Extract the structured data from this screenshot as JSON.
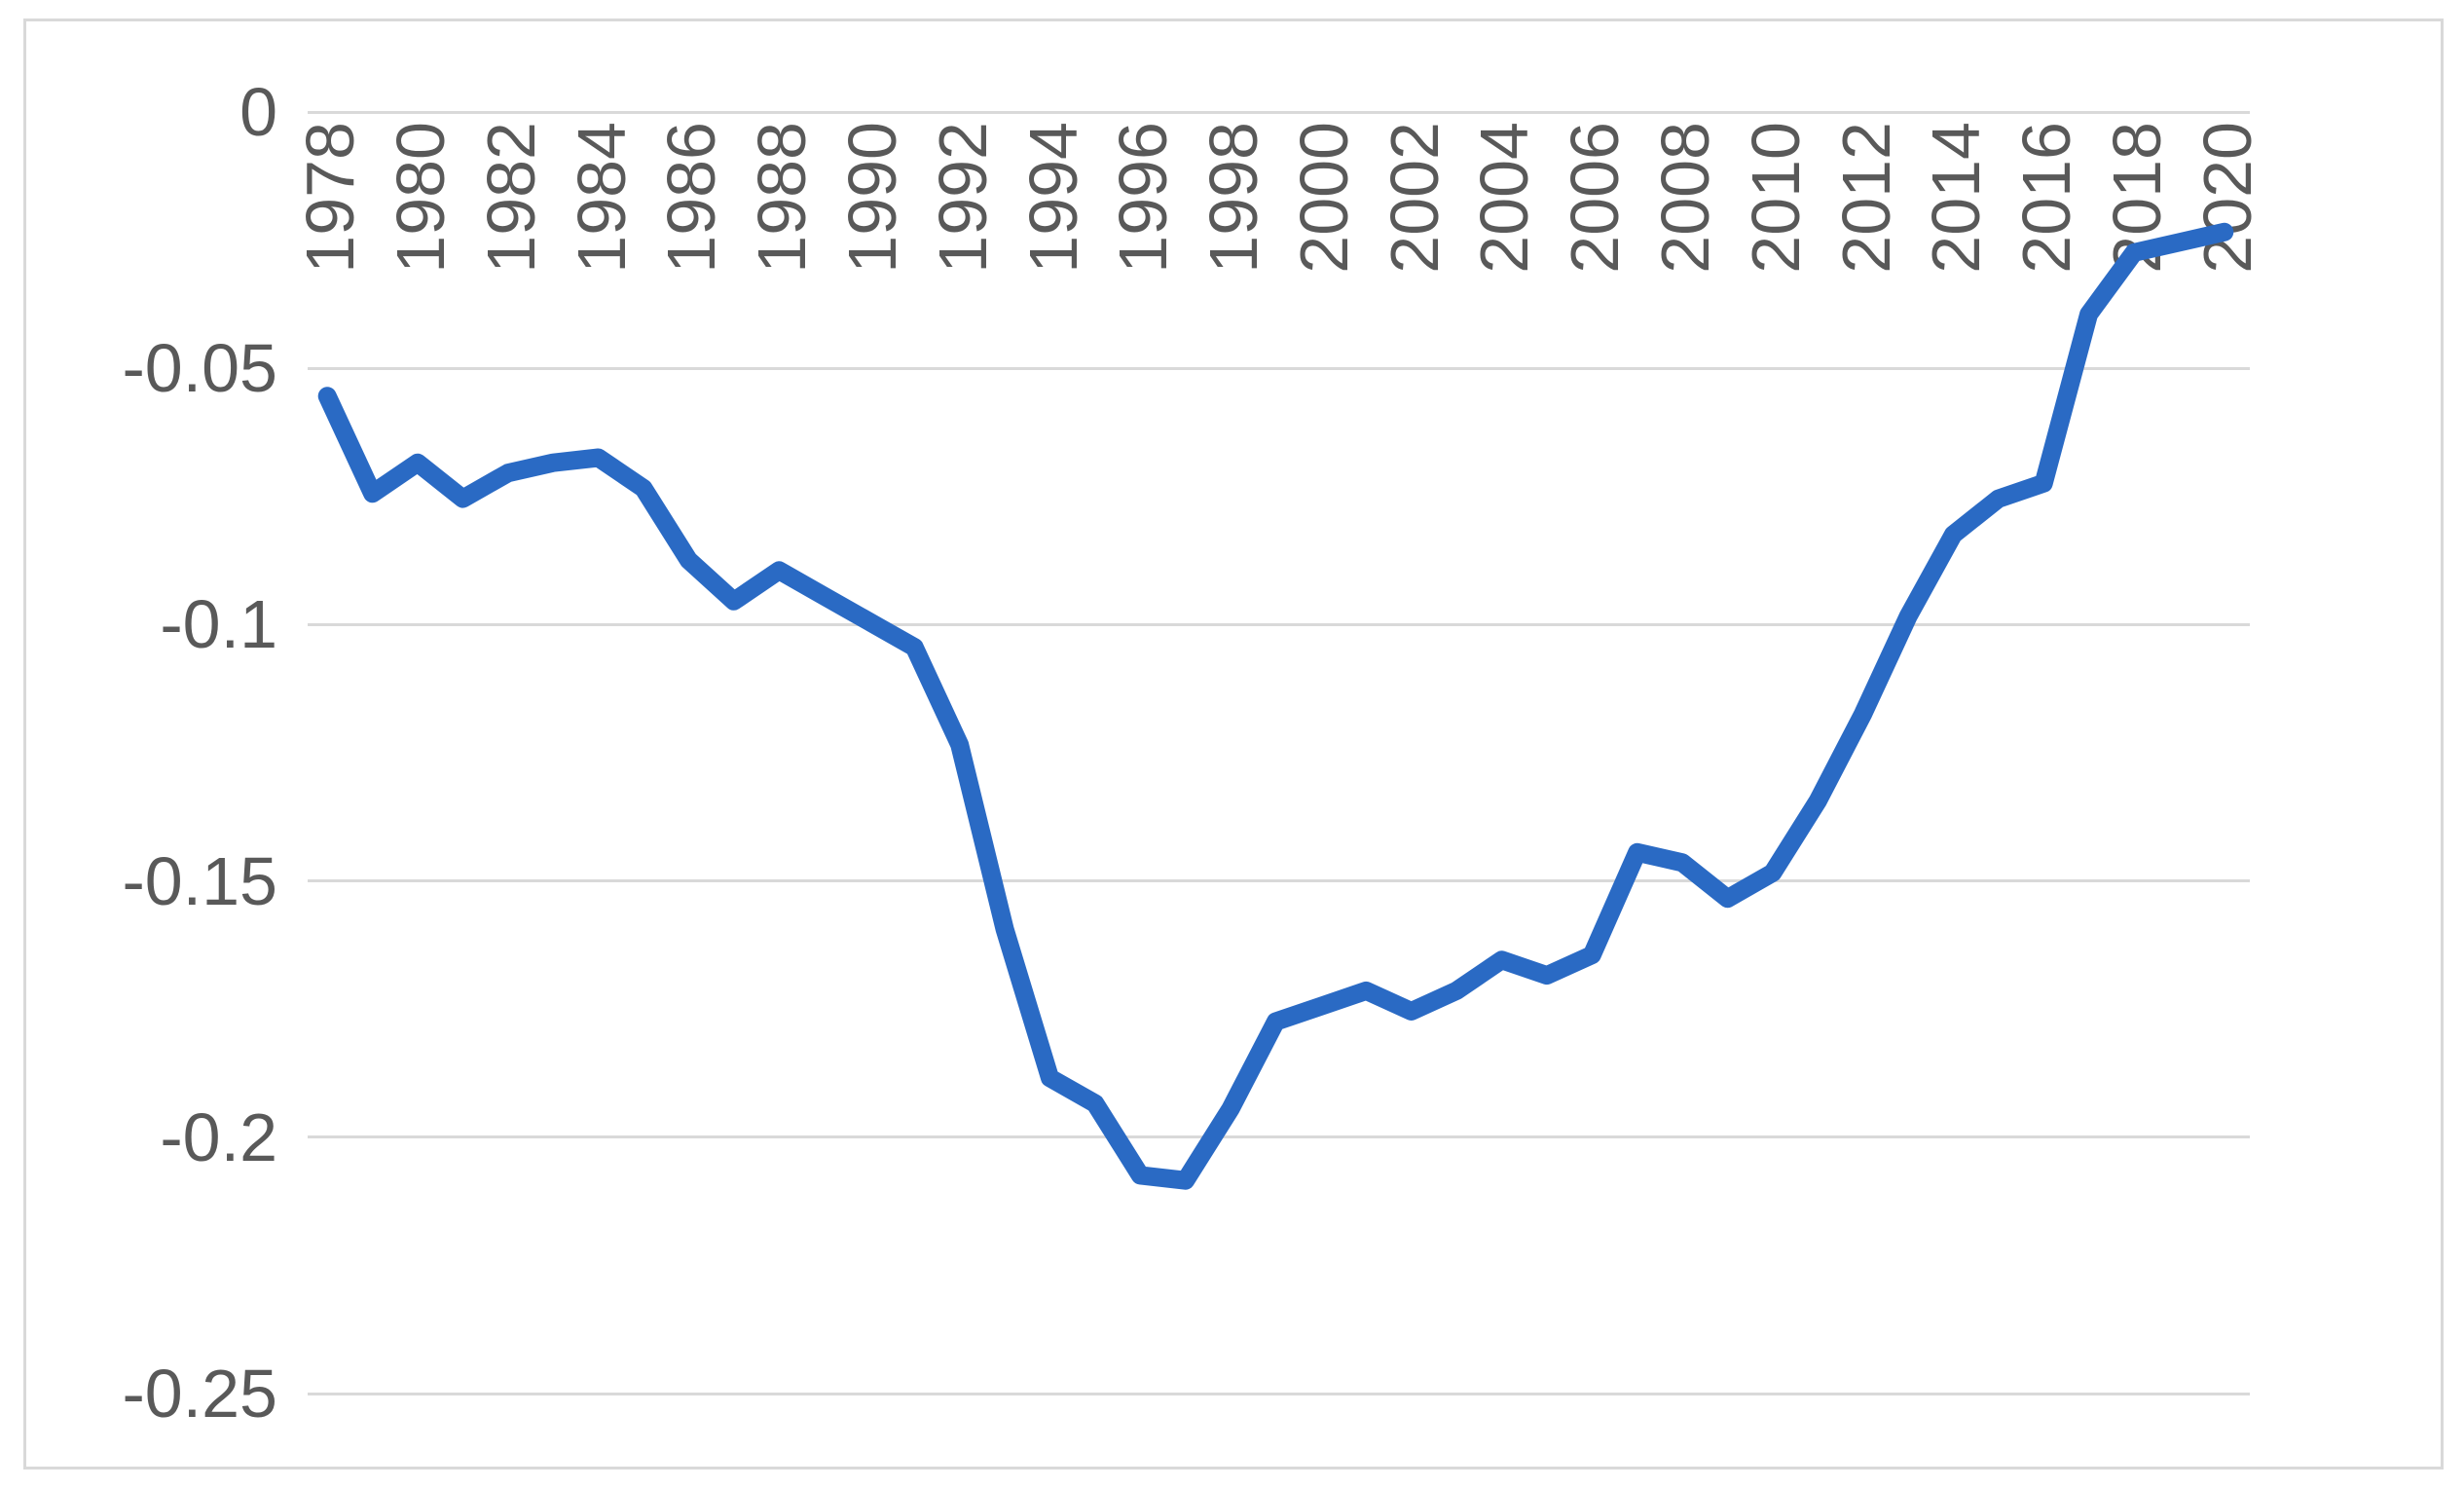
{
  "chart_data": {
    "type": "line",
    "title": "",
    "xlabel": "",
    "ylabel": "",
    "x": [
      1978,
      1979,
      1980,
      1981,
      1982,
      1983,
      1984,
      1985,
      1986,
      1987,
      1988,
      1989,
      1990,
      1991,
      1992,
      1993,
      1994,
      1995,
      1996,
      1997,
      1998,
      1999,
      2000,
      2001,
      2002,
      2003,
      2004,
      2005,
      2006,
      2007,
      2008,
      2009,
      2010,
      2011,
      2012,
      2013,
      2014,
      2015,
      2016,
      2017,
      2018,
      2019,
      2020
    ],
    "values": [
      -0.056,
      -0.075,
      -0.069,
      -0.076,
      -0.071,
      -0.069,
      -0.068,
      -0.074,
      -0.088,
      -0.096,
      -0.09,
      -0.095,
      -0.1,
      -0.105,
      -0.124,
      -0.16,
      -0.189,
      -0.194,
      -0.208,
      -0.209,
      -0.195,
      -0.178,
      -0.175,
      -0.172,
      -0.176,
      -0.172,
      -0.166,
      -0.169,
      -0.165,
      -0.145,
      -0.147,
      -0.154,
      -0.149,
      -0.135,
      -0.118,
      -0.099,
      -0.083,
      -0.076,
      -0.073,
      -0.04,
      -0.028,
      -0.026,
      -0.024
    ],
    "x_tick_labels": [
      "1978",
      "1980",
      "1982",
      "1984",
      "1986",
      "1988",
      "1990",
      "1992",
      "1994",
      "1996",
      "1998",
      "2000",
      "2002",
      "2004",
      "2006",
      "2008",
      "2010",
      "2012",
      "2014",
      "2016",
      "2018",
      "2020"
    ],
    "x_tick_interval": 2,
    "y_tick_labels": [
      "0",
      "-0.05",
      "-0.1",
      "-0.15",
      "-0.2",
      "-0.25"
    ],
    "y_ticks": [
      0,
      -0.05,
      -0.1,
      -0.15,
      -0.2,
      -0.25
    ],
    "ylim": [
      -0.25,
      0
    ],
    "x_label_rotation_deg": -90,
    "grid": true,
    "legend": false,
    "colors": {
      "series_line": "#2A6AC4",
      "gridline": "#D9D9D9",
      "tick_label": "#595959",
      "frame_border": "#D9D9D9",
      "background": "#FFFFFF"
    }
  }
}
